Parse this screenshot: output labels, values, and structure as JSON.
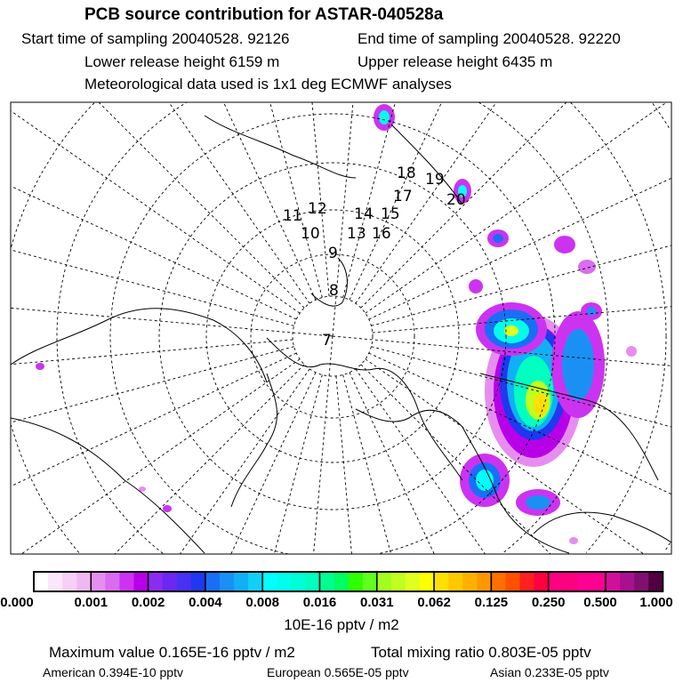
{
  "header": {
    "title": "PCB source contribution for ASTAR-040528a",
    "start_time": "Start time of sampling 20040528. 92126",
    "end_time": "End time of sampling 20040528. 92220",
    "lower_height": "Lower release height 6159 m",
    "upper_height": "Upper release height 6435 m",
    "met_data": "Meteorological data used is 1x1 deg ECMWF analyses"
  },
  "map": {
    "trajectory_labels": [
      "7",
      "8",
      "9",
      "10",
      "11",
      "12",
      "13",
      "14",
      "15",
      "16",
      "17",
      "18",
      "19",
      "20"
    ]
  },
  "colorbar": {
    "labels": [
      "0.000",
      "0.001",
      "0.002",
      "0.004",
      "0.008",
      "0.016",
      "0.031",
      "0.062",
      "0.125",
      "0.250",
      "0.500",
      "1.000"
    ],
    "unit": "10E-16 pptv / m2",
    "segments": [
      [
        "#ffffff",
        "#fbe6fb",
        "#f6d0f6",
        "#f0b8f0"
      ],
      [
        "#e58ef0",
        "#d96cf0",
        "#cc33f0",
        "#b800e8"
      ],
      [
        "#8a2cf0",
        "#6a28f0",
        "#4a30f5",
        "#1f38f0"
      ],
      [
        "#1a6ef5",
        "#1a90f5",
        "#10b0f5",
        "#10d0f5"
      ],
      [
        "#00ffff",
        "#00ffea",
        "#00ffd5",
        "#00ffc0"
      ],
      [
        "#00ff90",
        "#00ff60",
        "#30ff00",
        "#60ff20"
      ],
      [
        "#a0ff20",
        "#c0ff20",
        "#e0ff20",
        "#ffff00"
      ],
      [
        "#ffe000",
        "#ffc800",
        "#ffb000",
        "#ff9800"
      ],
      [
        "#ff7000",
        "#ff5000",
        "#ff2020",
        "#ff0040"
      ],
      [
        "#ff0080",
        "#ff0080",
        "#ff0090",
        "#ff0090"
      ],
      [
        "#d0109a",
        "#a81090",
        "#80106f",
        "#500040"
      ]
    ]
  },
  "stats": {
    "max_value": "Maximum value  0.165E-16 pptv / m2",
    "total_mixing": "Total mixing ratio  0.803E-05 pptv",
    "american": "American  0.394E-10 pptv",
    "european": "European  0.565E-05 pptv",
    "asian": "Asian  0.233E-05 pptv"
  }
}
